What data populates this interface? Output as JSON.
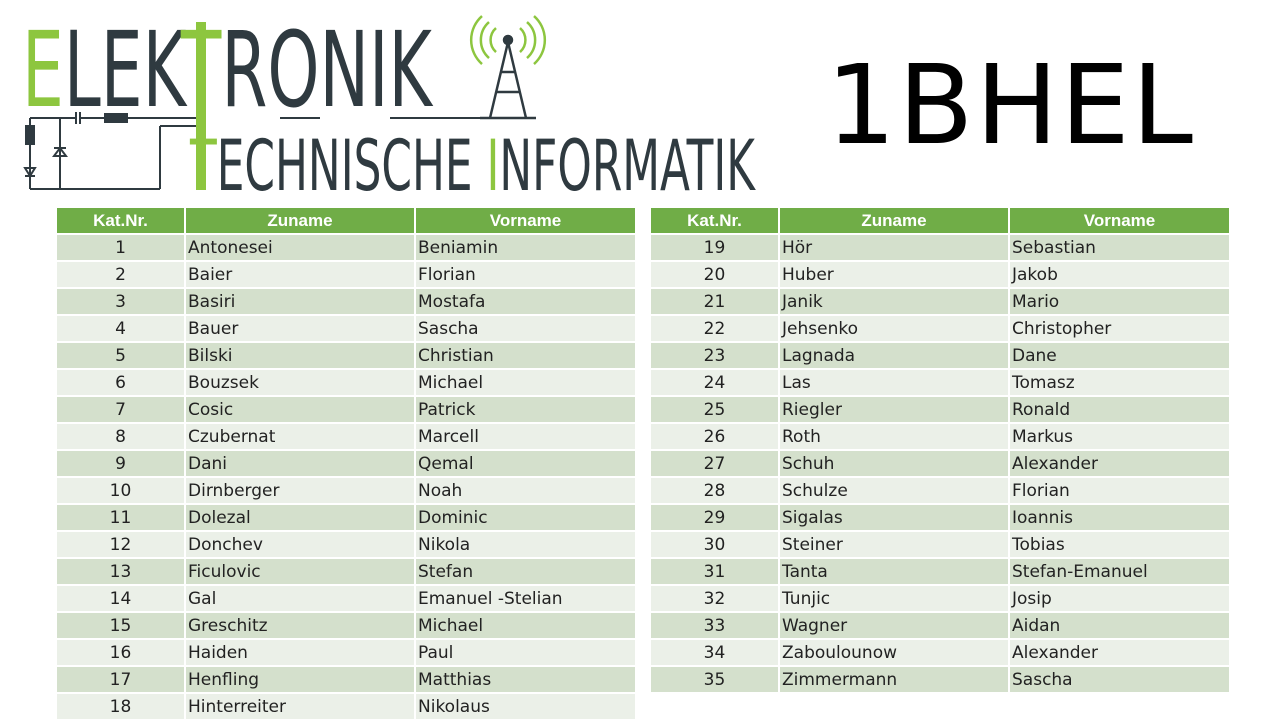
{
  "logo": {
    "line1_first": "E",
    "line1_rest": "LEK",
    "line1_t": "T",
    "line1_end": "RONIK",
    "line2_t": "T",
    "line2_mid": "ECHNISCHE ",
    "line2_i": "I",
    "line2_end": "NFORMATIK",
    "accent_color": "#8dc63f",
    "dark_color": "#2f3a40"
  },
  "class_name": "1BHEL",
  "table": {
    "headers": [
      "Kat.Nr.",
      "Zuname",
      "Vorname"
    ],
    "header_color": "#70ad47",
    "left_rows": [
      [
        "1",
        "Antonesei",
        "Beniamin"
      ],
      [
        "2",
        "Baier",
        "Florian"
      ],
      [
        "3",
        "Basiri",
        "Mostafa"
      ],
      [
        "4",
        "Bauer",
        "Sascha"
      ],
      [
        "5",
        "Bilski",
        "Christian"
      ],
      [
        "6",
        "Bouzsek",
        "Michael"
      ],
      [
        "7",
        "Cosic",
        "Patrick"
      ],
      [
        "8",
        "Czubernat",
        "Marcell"
      ],
      [
        "9",
        "Dani",
        "Qemal"
      ],
      [
        "10",
        "Dirnberger",
        "Noah"
      ],
      [
        "11",
        "Dolezal",
        "Dominic"
      ],
      [
        "12",
        "Donchev",
        "Nikola"
      ],
      [
        "13",
        "Ficulovic",
        "Stefan"
      ],
      [
        "14",
        "Gal",
        "Emanuel -Stelian"
      ],
      [
        "15",
        "Greschitz",
        "Michael"
      ],
      [
        "16",
        "Haiden",
        "Paul"
      ],
      [
        "17",
        "Henfling",
        "Matthias"
      ],
      [
        "18",
        "Hinterreiter",
        "Nikolaus"
      ]
    ],
    "right_rows": [
      [
        "19",
        "Hör",
        "Sebastian"
      ],
      [
        "20",
        "Huber",
        "Jakob"
      ],
      [
        "21",
        "Janik",
        "Mario"
      ],
      [
        "22",
        "Jehsenko",
        "Christopher"
      ],
      [
        "23",
        "Lagnada",
        "Dane"
      ],
      [
        "24",
        "Las",
        "Tomasz"
      ],
      [
        "25",
        "Riegler",
        "Ronald"
      ],
      [
        "26",
        "Roth",
        "Markus"
      ],
      [
        "27",
        "Schuh",
        "Alexander"
      ],
      [
        "28",
        "Schulze",
        "Florian"
      ],
      [
        "29",
        "Sigalas",
        "Ioannis"
      ],
      [
        "30",
        "Steiner",
        "Tobias"
      ],
      [
        "31",
        "Tanta",
        "Stefan-Emanuel"
      ],
      [
        "32",
        "Tunjic",
        "Josip"
      ],
      [
        "33",
        "Wagner",
        "Aidan"
      ],
      [
        "34",
        "Zaboulounow",
        "Alexander"
      ],
      [
        "35",
        "Zimmermann",
        "Sascha"
      ]
    ]
  }
}
